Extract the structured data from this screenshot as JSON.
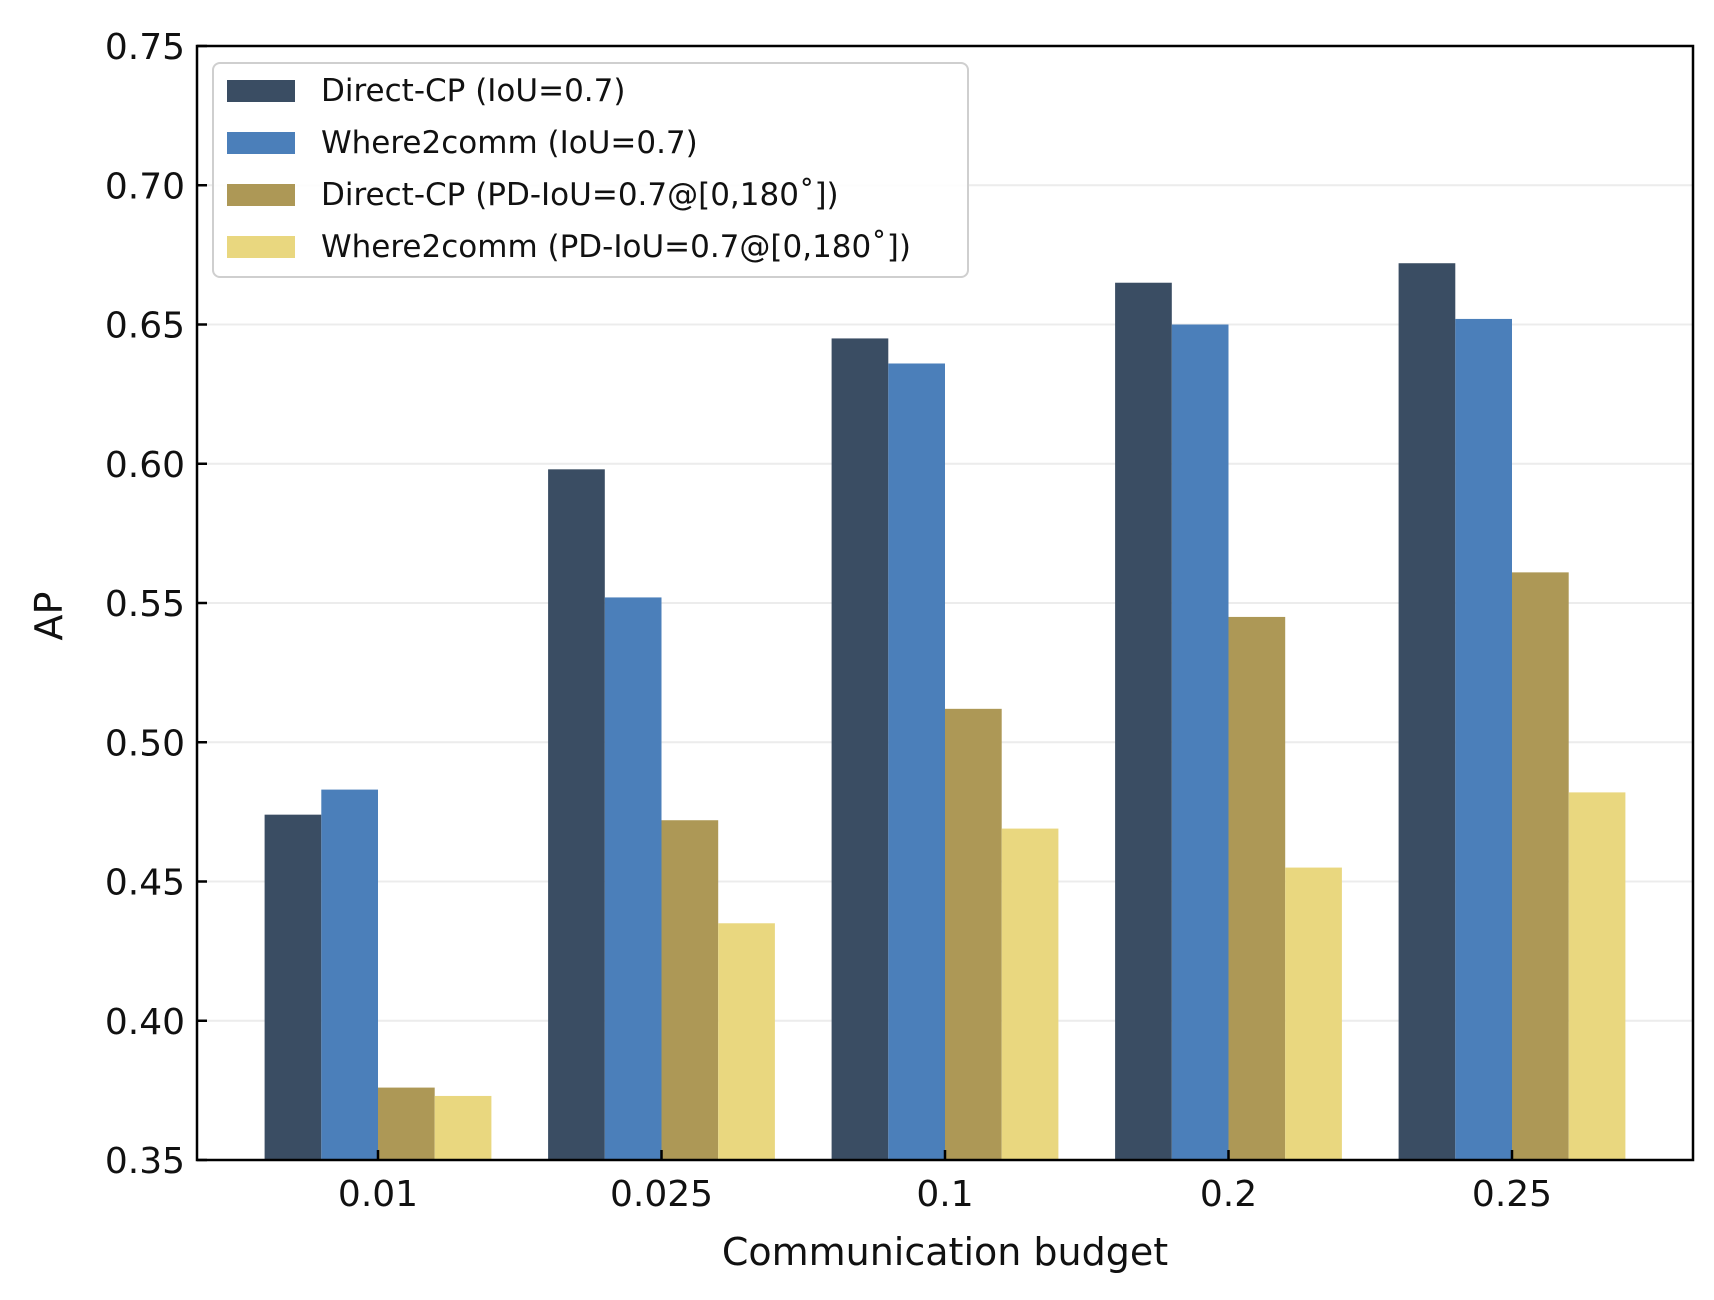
{
  "chart_data": {
    "type": "bar",
    "title": "",
    "xlabel": "Communication budget",
    "ylabel": "AP",
    "categories": [
      "0.01",
      "0.025",
      "0.1",
      "0.2",
      "0.25"
    ],
    "ylim": [
      0.35,
      0.75
    ],
    "yticks": [
      0.35,
      0.4,
      0.45,
      0.5,
      0.55,
      0.6,
      0.65,
      0.7,
      0.75
    ],
    "ytick_labels": [
      "0.35",
      "0.40",
      "0.45",
      "0.50",
      "0.55",
      "0.60",
      "0.65",
      "0.70",
      "0.75"
    ],
    "grid": "horizontal",
    "legend_position": "top-left",
    "series": [
      {
        "name": "Direct-CP (IoU=0.7)",
        "color": "#3a4d63",
        "values": [
          0.474,
          0.598,
          0.645,
          0.665,
          0.672
        ]
      },
      {
        "name": "Where2comm (IoU=0.7)",
        "color": "#4b7fba",
        "values": [
          0.483,
          0.552,
          0.636,
          0.65,
          0.652
        ]
      },
      {
        "name": "Direct-CP (PD-IoU=0.7@[0,180˚])",
        "color": "#ad9856",
        "values": [
          0.376,
          0.472,
          0.512,
          0.545,
          0.561
        ]
      },
      {
        "name": "Where2comm (PD-IoU=0.7@[0,180˚])",
        "color": "#e9d77f",
        "values": [
          0.373,
          0.435,
          0.469,
          0.455,
          0.482
        ]
      }
    ]
  }
}
